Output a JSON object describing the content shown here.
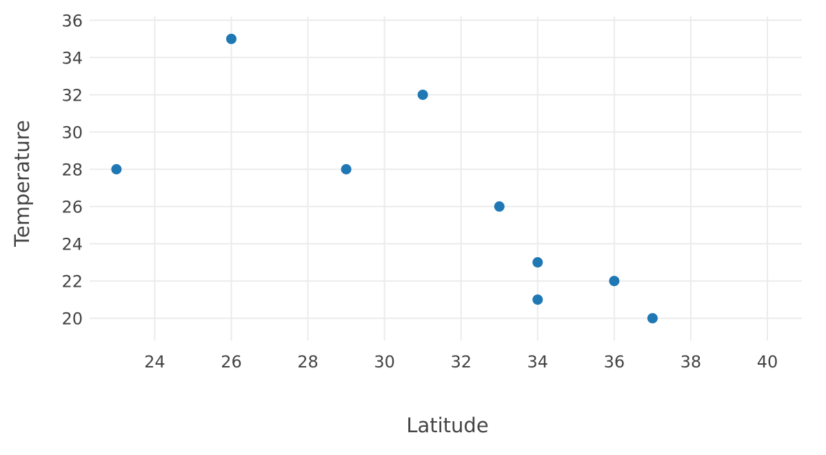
{
  "chart_data": {
    "type": "scatter",
    "xlabel": "Latitude",
    "ylabel": "Temperature",
    "xlim": [
      22.3,
      40.9
    ],
    "ylim": [
      18.8,
      36.2
    ],
    "xticks": [
      24,
      26,
      28,
      30,
      32,
      34,
      36,
      38,
      40
    ],
    "yticks": [
      20,
      22,
      24,
      26,
      28,
      30,
      32,
      34,
      36
    ],
    "grid": true,
    "series": [
      {
        "color": "#1f77b4",
        "points": [
          {
            "x": 23,
            "y": 28
          },
          {
            "x": 26,
            "y": 35
          },
          {
            "x": 29,
            "y": 28
          },
          {
            "x": 31,
            "y": 32
          },
          {
            "x": 33,
            "y": 26
          },
          {
            "x": 34,
            "y": 23
          },
          {
            "x": 34,
            "y": 21
          },
          {
            "x": 36,
            "y": 22
          },
          {
            "x": 37,
            "y": 20
          }
        ]
      }
    ]
  }
}
